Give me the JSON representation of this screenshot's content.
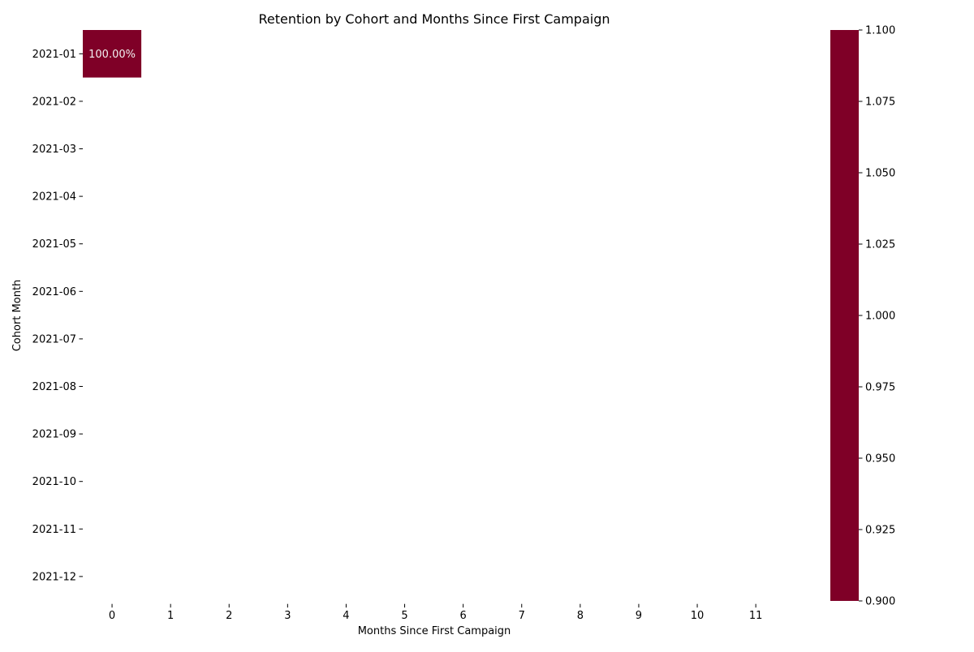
{
  "chart_data": {
    "type": "heatmap",
    "title": "Retention by Cohort and Months Since First Campaign",
    "xlabel": "Months Since First Campaign",
    "ylabel": "Cohort Month",
    "x": [
      "0",
      "1",
      "2",
      "3",
      "4",
      "5",
      "6",
      "7",
      "8",
      "9",
      "10",
      "11"
    ],
    "y": [
      "2021-01",
      "2021-02",
      "2021-03",
      "2021-04",
      "2021-05",
      "2021-06",
      "2021-07",
      "2021-08",
      "2021-09",
      "2021-10",
      "2021-11",
      "2021-12"
    ],
    "cells": [
      {
        "row": "2021-01",
        "col": "0",
        "value": 1.0,
        "label": "100.00%"
      }
    ],
    "cell_color": "#7f0027",
    "colorbar": {
      "range": [
        0.9,
        1.1
      ],
      "ticks": [
        "0.900",
        "0.925",
        "0.950",
        "0.975",
        "1.000",
        "1.025",
        "1.050",
        "1.075",
        "1.100"
      ],
      "color": "#7f0027"
    }
  }
}
